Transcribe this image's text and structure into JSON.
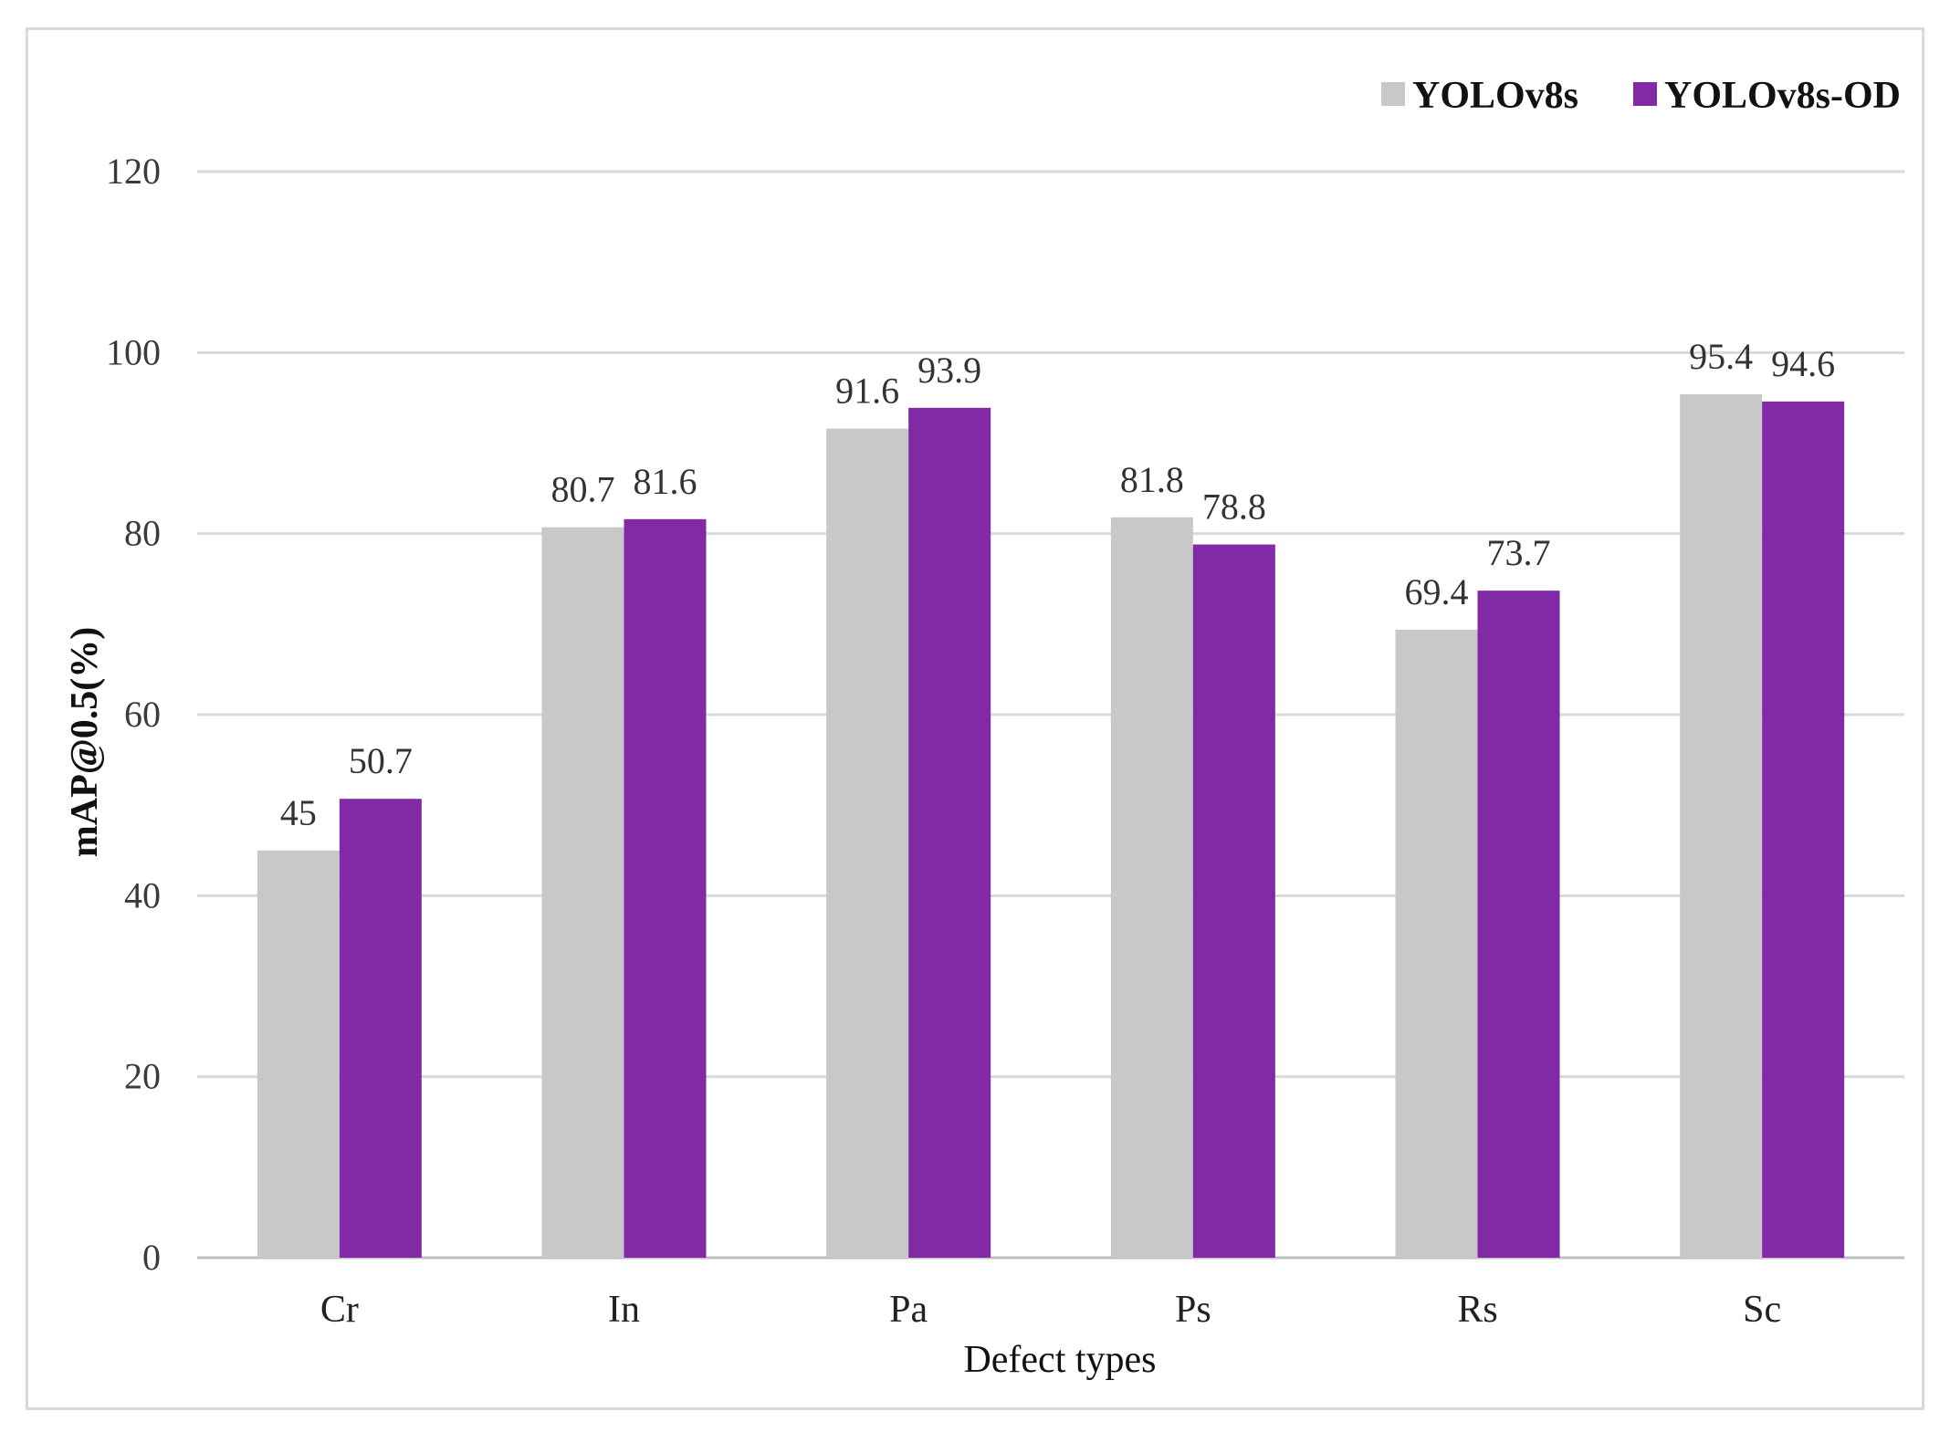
{
  "chart_data": {
    "type": "bar",
    "title": "",
    "xlabel": "Defect types",
    "ylabel": "mAP@0.5(%)",
    "ylim": [
      0,
      120
    ],
    "yticks": [
      0,
      20,
      40,
      60,
      80,
      100,
      120
    ],
    "grid": true,
    "legend_position": "top-right",
    "categories": [
      "Cr",
      "In",
      "Pa",
      "Ps",
      "Rs",
      "Sc"
    ],
    "series": [
      {
        "name": "YOLOv8s",
        "color": "#c8c8c8",
        "values": [
          45,
          80.7,
          91.6,
          81.8,
          69.4,
          95.4
        ],
        "labels": [
          "45",
          "80.7",
          "91.6",
          "81.8",
          "69.4",
          "95.4"
        ]
      },
      {
        "name": "YOLOv8s-OD",
        "color": "#8229a6",
        "values": [
          50.7,
          81.6,
          93.9,
          78.8,
          73.7,
          94.6
        ],
        "labels": [
          "50.7",
          "81.6",
          "93.9",
          "78.8",
          "73.7",
          "94.6"
        ]
      }
    ]
  }
}
